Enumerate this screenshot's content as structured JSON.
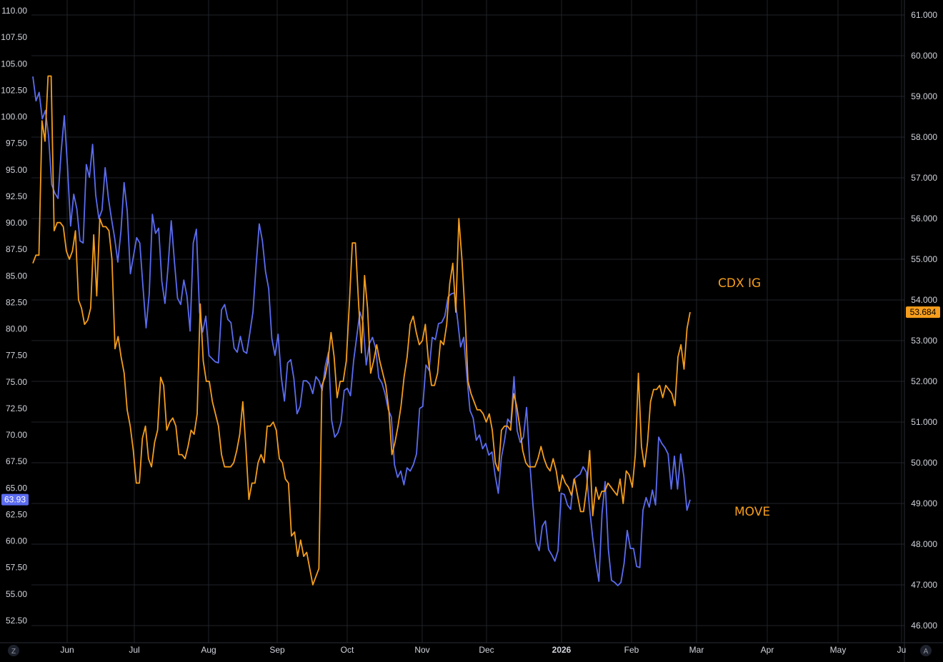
{
  "chart_data": {
    "type": "line",
    "x_axis_labels": [
      "Jun",
      "Jul",
      "Aug",
      "Sep",
      "Oct",
      "Nov",
      "Dec",
      "2026",
      "Feb",
      "Mar",
      "Apr",
      "May",
      "Ju"
    ],
    "left_axis": {
      "ticks": [
        "52.50",
        "55.00",
        "57.50",
        "60.00",
        "62.50",
        "65.00",
        "67.50",
        "70.00",
        "72.50",
        "75.00",
        "77.50",
        "80.00",
        "82.50",
        "85.00",
        "87.50",
        "90.00",
        "92.50",
        "95.00",
        "97.50",
        "100.00",
        "102.50",
        "105.00",
        "107.50",
        "110.00"
      ],
      "min": 52.5,
      "max": 110.0,
      "last_value_label": "63.93"
    },
    "right_axis": {
      "ticks": [
        "46.000",
        "47.000",
        "48.000",
        "49.000",
        "50.000",
        "51.000",
        "52.000",
        "53.000",
        "54.000",
        "55.000",
        "56.000",
        "57.000",
        "58.000",
        "59.000",
        "60.000",
        "61.000"
      ],
      "min": 46.0,
      "max": 61.0,
      "last_value_label": "53.684"
    },
    "series": [
      {
        "name": "MOVE",
        "axis": "left",
        "color": "#5b6cf0",
        "values": [
          103.8,
          101.5,
          102.3,
          99.8,
          100.6,
          98.2,
          93.6,
          92.8,
          92.3,
          96.7,
          100.1,
          95.4,
          89.7,
          92.7,
          91.3,
          88.3,
          88.1,
          95.5,
          94.3,
          97.4,
          92.6,
          90.4,
          91.2,
          95.2,
          92.4,
          90.4,
          88.6,
          86.3,
          89.2,
          93.8,
          91.1,
          85.2,
          86.9,
          88.6,
          88.1,
          84.0,
          80.1,
          83.3,
          90.8,
          89.0,
          89.5,
          84.5,
          82.4,
          85.9,
          90.2,
          86.4,
          82.9,
          82.3,
          84.6,
          83.1,
          79.8,
          88.1,
          89.4,
          81.6,
          79.7,
          81.2,
          77.5,
          77.2,
          76.9,
          76.8,
          81.8,
          82.3,
          80.9,
          80.6,
          78.2,
          77.8,
          79.3,
          77.9,
          77.7,
          79.6,
          81.6,
          86.0,
          89.9,
          88.3,
          85.4,
          83.8,
          79.1,
          77.5,
          79.5,
          75.4,
          73.2,
          76.8,
          77.1,
          75.3,
          72.0,
          72.7,
          75.1,
          75.1,
          74.8,
          73.9,
          75.5,
          75.1,
          74.2,
          76.5,
          77.8,
          71.4,
          69.8,
          70.2,
          71.2,
          74.2,
          74.4,
          73.7,
          77.0,
          79.3,
          81.6,
          80.6,
          76.6,
          78.6,
          79.2,
          78.2,
          75.4,
          74.9,
          73.9,
          72.4,
          71.7,
          67.2,
          66.0,
          66.6,
          65.3,
          66.9,
          66.6,
          67.2,
          68.2,
          72.5,
          72.7,
          76.6,
          76.1,
          79.2,
          79.0,
          80.5,
          80.6,
          81.2,
          83.0,
          83.3,
          83.4,
          81.0,
          78.3,
          79.2,
          75.6,
          72.3,
          71.6,
          69.5,
          70.0,
          68.7,
          69.2,
          68.1,
          68.4,
          66.2,
          64.5,
          67.9,
          69.5,
          71.5,
          71.1,
          75.5,
          70.4,
          69.3,
          69.8,
          72.6,
          67.5,
          63.5,
          59.9,
          59.1,
          61.4,
          61.9,
          59.2,
          58.7,
          58.1,
          59.1,
          64.5,
          64.4,
          63.4,
          63.0,
          65.8,
          66.1,
          66.3,
          67.0,
          66.5,
          63.2,
          60.4,
          58.1,
          56.2,
          62.6,
          65.6,
          59.2,
          56.3,
          56.1,
          55.8,
          56.1,
          57.9,
          61.0,
          59.3,
          59.3,
          57.6,
          57.5,
          62.9,
          64.1,
          63.2,
          64.8,
          63.4,
          69.8,
          69.2,
          68.8,
          68.2,
          64.9,
          68.0,
          64.9,
          68.2,
          66.1,
          62.9,
          63.9
        ]
      },
      {
        "name": "CDX IG",
        "axis": "right",
        "color": "#f59d1c",
        "values": [
          54.9,
          55.1,
          55.1,
          58.4,
          57.9,
          59.5,
          59.5,
          55.7,
          55.9,
          55.9,
          55.8,
          55.2,
          55.0,
          55.2,
          55.7,
          54.0,
          53.8,
          53.4,
          53.5,
          53.8,
          55.6,
          54.1,
          56.0,
          55.8,
          55.8,
          55.7,
          55.0,
          52.8,
          53.1,
          52.6,
          52.2,
          51.3,
          50.9,
          50.3,
          49.5,
          49.5,
          50.6,
          50.9,
          50.1,
          49.9,
          50.5,
          50.8,
          52.1,
          51.9,
          50.8,
          51.0,
          51.1,
          50.9,
          50.2,
          50.2,
          50.1,
          50.4,
          50.8,
          50.7,
          51.2,
          53.9,
          52.5,
          52.0,
          52.0,
          51.5,
          51.2,
          50.9,
          50.2,
          49.9,
          49.9,
          49.9,
          50.0,
          50.3,
          50.7,
          51.5,
          50.4,
          49.1,
          49.5,
          49.5,
          50.0,
          50.2,
          50.0,
          50.9,
          50.9,
          51.0,
          50.8,
          50.1,
          50.0,
          49.6,
          49.5,
          48.2,
          48.3,
          47.7,
          48.1,
          47.7,
          47.8,
          47.4,
          47.0,
          47.2,
          47.4,
          51.9,
          52.1,
          52.5,
          53.2,
          52.6,
          51.6,
          52.0,
          52.0,
          52.5,
          53.9,
          55.4,
          55.4,
          54.0,
          52.7,
          54.6,
          53.8,
          52.2,
          52.5,
          52.9,
          52.5,
          52.2,
          51.9,
          51.3,
          50.2,
          50.5,
          50.9,
          51.4,
          52.1,
          52.6,
          53.4,
          53.6,
          53.2,
          52.9,
          53.0,
          53.4,
          52.5,
          51.9,
          51.9,
          52.2,
          53.0,
          52.9,
          53.4,
          54.4,
          54.9,
          53.7,
          56.0,
          55.0,
          53.7,
          52.0,
          51.7,
          51.5,
          51.3,
          51.3,
          51.2,
          51.0,
          51.2,
          50.8,
          50.0,
          49.8,
          50.8,
          50.9,
          50.9,
          50.8,
          51.7,
          51.4,
          50.9,
          50.3,
          50.0,
          49.9,
          49.9,
          49.9,
          50.1,
          50.4,
          50.1,
          49.9,
          49.8,
          50.1,
          49.8,
          49.3,
          49.7,
          49.5,
          49.4,
          49.2,
          49.6,
          49.2,
          48.8,
          48.8,
          49.4,
          50.3,
          48.7,
          49.4,
          49.1,
          49.3,
          49.3,
          49.5,
          49.4,
          49.3,
          49.2,
          49.6,
          49.0,
          49.8,
          49.7,
          49.4,
          50.2,
          52.2,
          50.4,
          49.9,
          50.5,
          51.5,
          51.8,
          51.8,
          51.9,
          51.6,
          51.9,
          51.8,
          51.7,
          51.4,
          52.6,
          52.9,
          52.3,
          53.3,
          53.7
        ]
      }
    ],
    "annotations": [
      "CDX IG",
      "MOVE"
    ],
    "grid": true,
    "corner_buttons": [
      "Z",
      "A"
    ]
  }
}
